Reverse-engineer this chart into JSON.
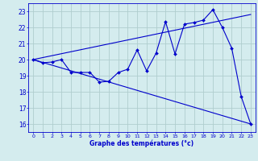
{
  "xlabel": "Graphe des températures (°c)",
  "bg_color": "#d4ecee",
  "line_color": "#0000cc",
  "grid_color": "#b0cece",
  "xlim": [
    -0.5,
    23.5
  ],
  "ylim": [
    15.5,
    23.5
  ],
  "yticks": [
    16,
    17,
    18,
    19,
    20,
    21,
    22,
    23
  ],
  "xticks": [
    0,
    1,
    2,
    3,
    4,
    5,
    6,
    7,
    8,
    9,
    10,
    11,
    12,
    13,
    14,
    15,
    16,
    17,
    18,
    19,
    20,
    21,
    22,
    23
  ],
  "line1_x": [
    0,
    23
  ],
  "line1_y": [
    20.0,
    22.8
  ],
  "line2_x": [
    0,
    23
  ],
  "line2_y": [
    20.0,
    16.0
  ],
  "line3_x": [
    0,
    1,
    2,
    3,
    4,
    5,
    6,
    7,
    8,
    9,
    10,
    11,
    12,
    13,
    14,
    15,
    16,
    17,
    18,
    19,
    20,
    21,
    22,
    23
  ],
  "line3_y": [
    20.0,
    19.8,
    19.85,
    20.0,
    19.2,
    19.2,
    19.2,
    18.6,
    18.65,
    19.2,
    19.4,
    20.6,
    19.3,
    20.4,
    22.35,
    20.35,
    22.2,
    22.3,
    22.45,
    23.1,
    22.0,
    20.7,
    17.7,
    16.0
  ],
  "markersize": 2.0
}
